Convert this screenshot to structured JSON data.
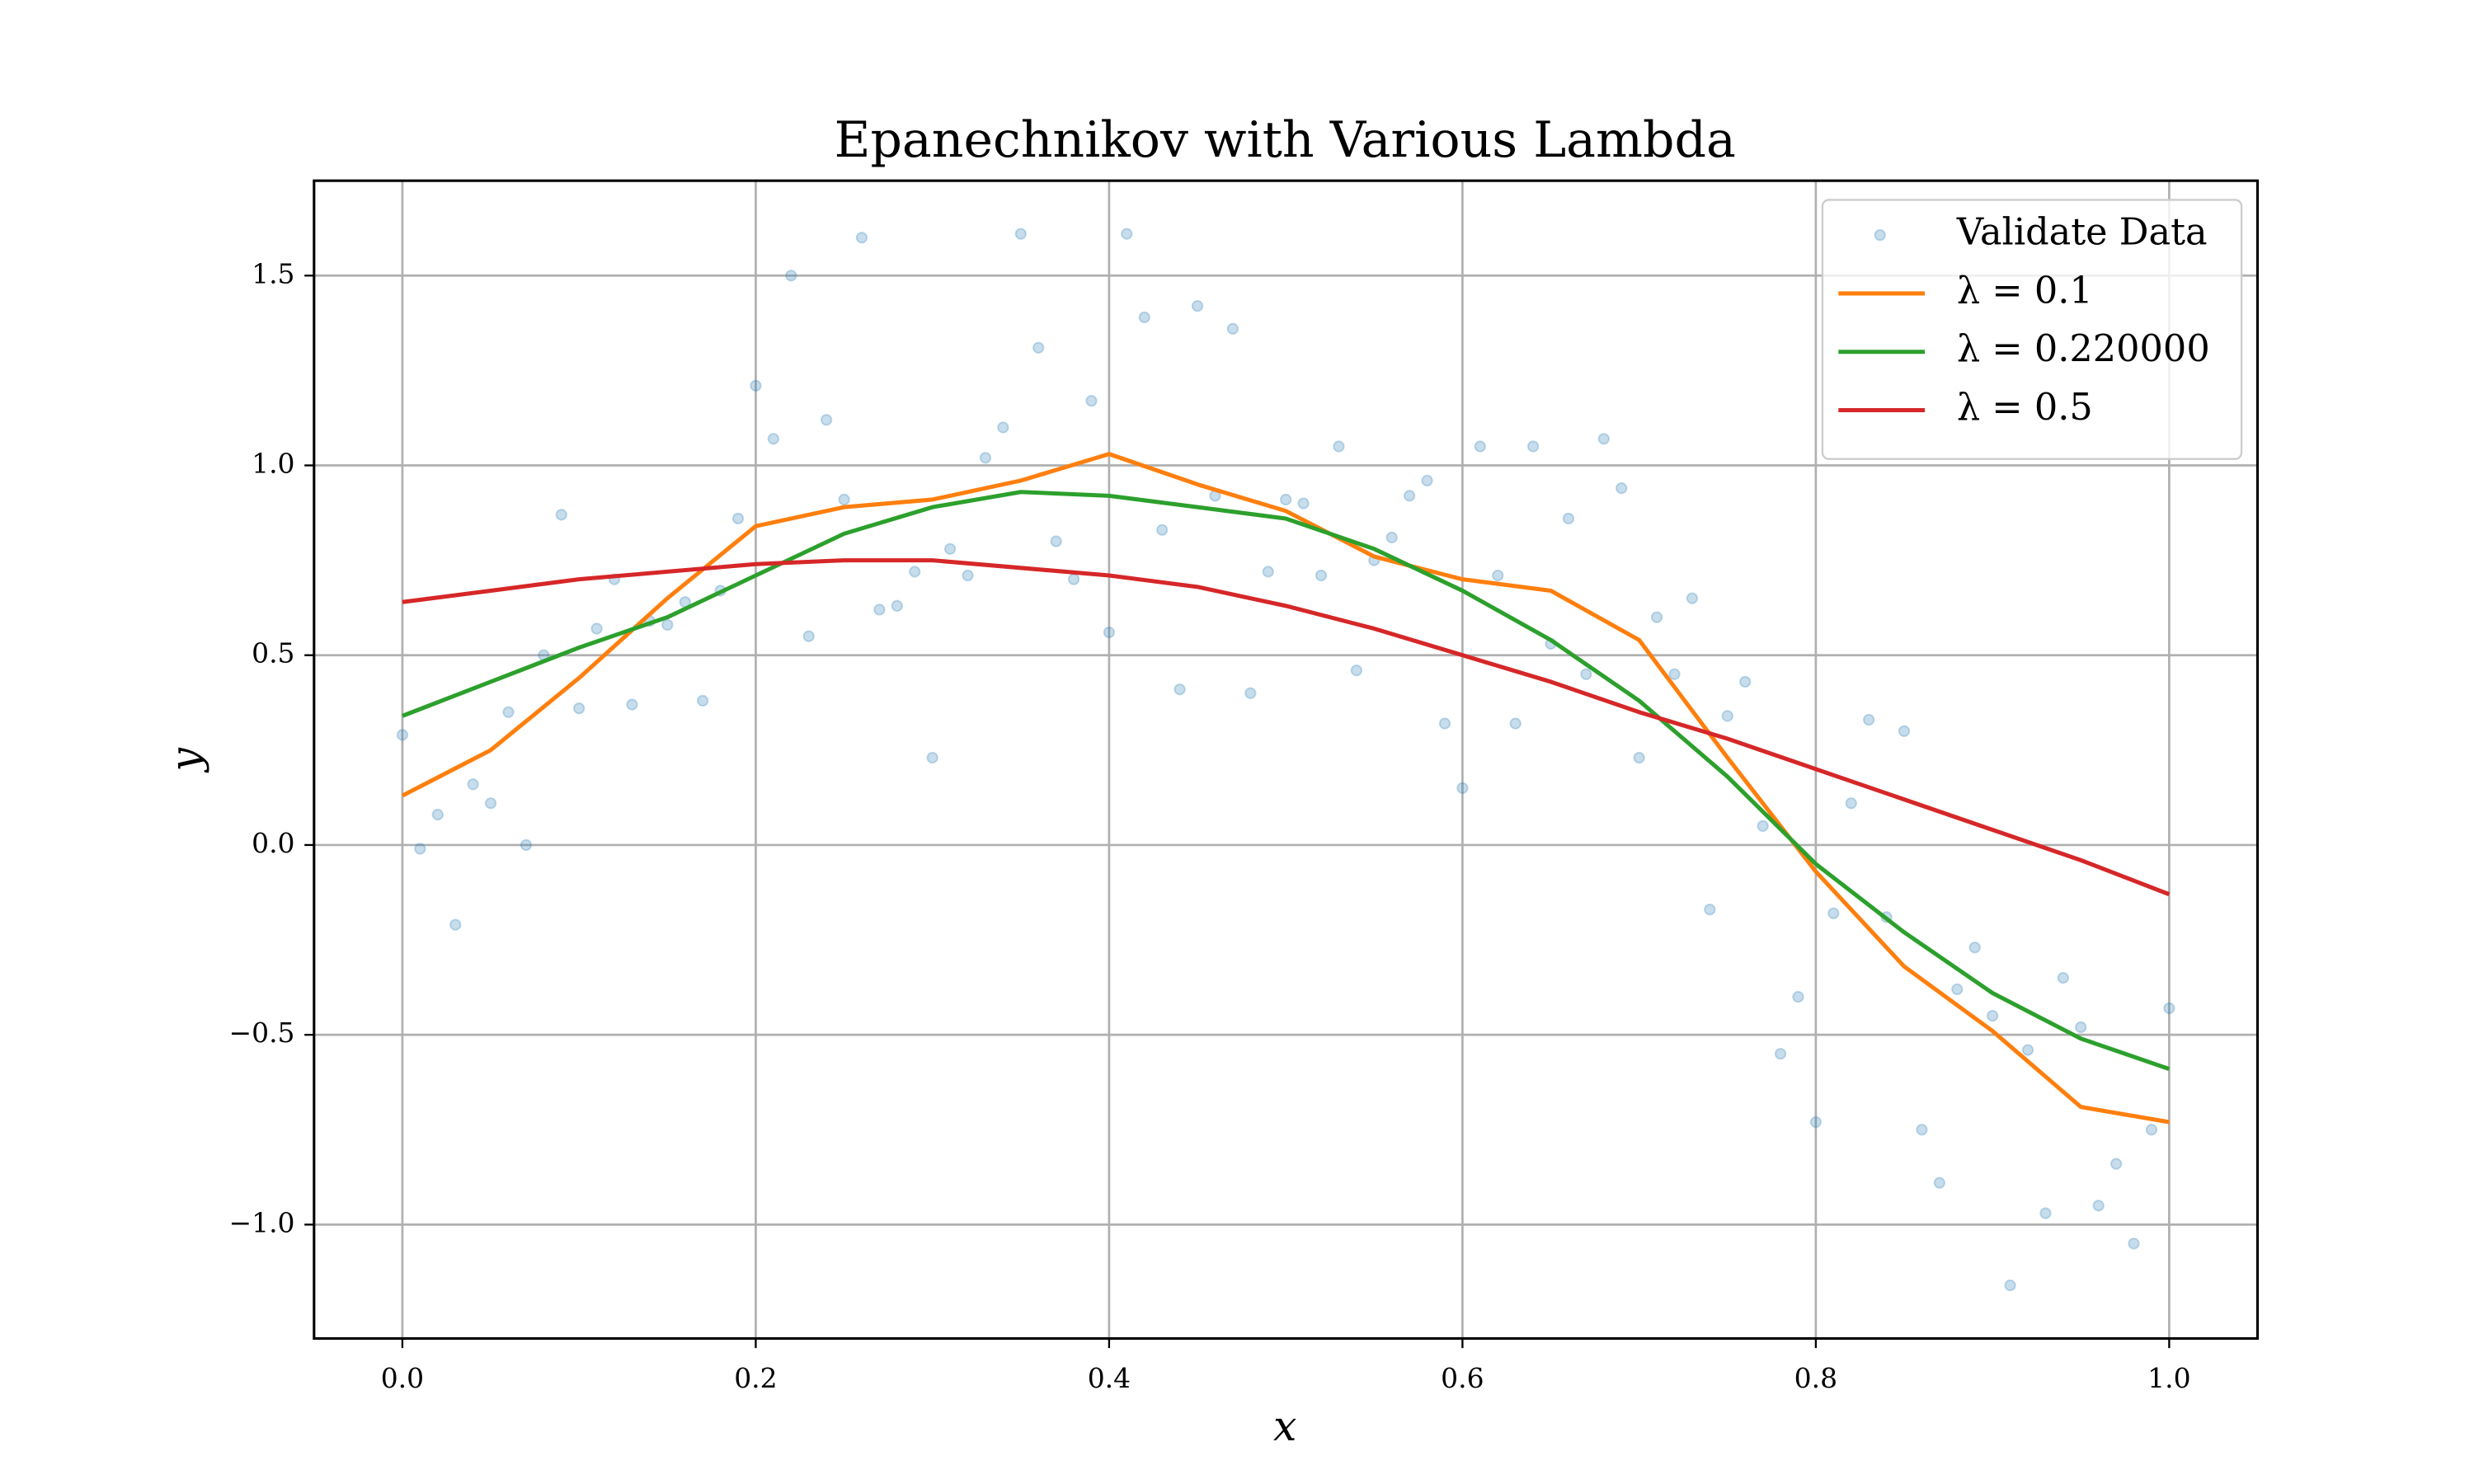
{
  "chart_data": {
    "type": "line",
    "title": "Epanechnikov with Various Lambda",
    "x_label": "x",
    "y_label": "y",
    "xlim": [
      -0.05,
      1.05
    ],
    "ylim": [
      -1.3,
      1.75
    ],
    "xticks": [
      {
        "value": 0,
        "label": "0.0"
      },
      0.2,
      0.4,
      0.6,
      0.8,
      {
        "value": 1,
        "label": "1.0"
      }
    ],
    "yticks": [
      {
        "value": -1,
        "label": "−1.0"
      },
      {
        "value": -0.5,
        "label": "−0.5"
      },
      {
        "value": 0,
        "label": "0.0"
      },
      0.5,
      {
        "value": 1,
        "label": "1.0"
      },
      1.5
    ],
    "grid": true,
    "legend": "upper right",
    "series": [
      {
        "name": "Validate Data",
        "type": "scatter",
        "color": "#1f77b4",
        "alpha": 0.25,
        "x": [
          0,
          0.01,
          0.02,
          0.03,
          0.04,
          0.05,
          0.06,
          0.07,
          0.08,
          0.09,
          0.1,
          0.11,
          0.12,
          0.13,
          0.14,
          0.15,
          0.16,
          0.17,
          0.18,
          0.19,
          0.2,
          0.21,
          0.22,
          0.23,
          0.24,
          0.25,
          0.26,
          0.27,
          0.28,
          0.29,
          0.3,
          0.31,
          0.32,
          0.33,
          0.34,
          0.35,
          0.36,
          0.37,
          0.38,
          0.39,
          0.4,
          0.41,
          0.42,
          0.43,
          0.44,
          0.45,
          0.46,
          0.47,
          0.48,
          0.49,
          0.5,
          0.51,
          0.52,
          0.53,
          0.54,
          0.55,
          0.56,
          0.57,
          0.58,
          0.59,
          0.6,
          0.61,
          0.62,
          0.63,
          0.64,
          0.65,
          0.66,
          0.67,
          0.68,
          0.69,
          0.7,
          0.71,
          0.72,
          0.73,
          0.74,
          0.75,
          0.76,
          0.77,
          0.78,
          0.79,
          0.8,
          0.81,
          0.82,
          0.83,
          0.84,
          0.85,
          0.86,
          0.87,
          0.88,
          0.89,
          0.9,
          0.91,
          0.92,
          0.93,
          0.94,
          0.95,
          0.96,
          0.97,
          0.98,
          0.99,
          1
        ],
        "values": [
          0.29,
          -0.01,
          0.08,
          -0.21,
          0.16,
          0.11,
          0.35,
          0.0,
          0.5,
          0.87,
          0.36,
          0.57,
          0.7,
          0.37,
          0.59,
          0.58,
          0.64,
          0.38,
          0.67,
          0.86,
          1.21,
          1.07,
          1.5,
          0.55,
          1.12,
          0.91,
          1.6,
          0.62,
          0.63,
          0.72,
          0.23,
          0.78,
          0.71,
          1.02,
          1.1,
          1.61,
          1.31,
          0.8,
          0.7,
          1.17,
          0.56,
          1.61,
          1.39,
          0.83,
          0.41,
          1.42,
          0.92,
          1.36,
          0.4,
          0.72,
          0.91,
          0.9,
          0.71,
          1.05,
          0.46,
          0.75,
          0.81,
          0.92,
          0.96,
          0.32,
          0.15,
          1.05,
          0.71,
          0.32,
          1.05,
          0.53,
          0.86,
          0.45,
          1.07,
          0.94,
          0.23,
          0.6,
          0.45,
          0.65,
          -0.17,
          0.34,
          0.43,
          0.05,
          -0.55,
          -0.4,
          -0.73,
          -0.18,
          0.11,
          0.33,
          -0.19,
          0.3,
          -0.75,
          -0.89,
          -0.38,
          -0.27,
          -0.45,
          -1.16,
          -0.54,
          -0.97,
          -0.35,
          -0.48,
          -0.95,
          -0.84,
          -1.05,
          -0.75,
          -0.43
        ]
      },
      {
        "name": "λ = 0.1",
        "color": "#ff7f0e",
        "x": [
          0,
          0.05,
          0.1,
          0.15,
          0.2,
          0.25,
          0.3,
          0.35,
          0.4,
          0.45,
          0.5,
          0.55,
          0.6,
          0.65,
          0.7,
          0.75,
          0.8,
          0.85,
          0.9,
          0.95,
          1
        ],
        "values": [
          0.13,
          0.25,
          0.44,
          0.65,
          0.84,
          0.89,
          0.91,
          0.96,
          1.03,
          0.95,
          0.88,
          0.76,
          0.7,
          0.67,
          0.54,
          0.23,
          -0.07,
          -0.32,
          -0.49,
          -0.69,
          -0.73
        ]
      },
      {
        "name": "λ = 0.220000",
        "color": "#2ca02c",
        "x": [
          0,
          0.05,
          0.1,
          0.15,
          0.2,
          0.25,
          0.3,
          0.35,
          0.4,
          0.45,
          0.5,
          0.55,
          0.6,
          0.65,
          0.7,
          0.75,
          0.8,
          0.85,
          0.9,
          0.95,
          1
        ],
        "values": [
          0.34,
          0.43,
          0.52,
          0.6,
          0.71,
          0.82,
          0.89,
          0.93,
          0.92,
          0.89,
          0.86,
          0.78,
          0.67,
          0.54,
          0.38,
          0.18,
          -0.05,
          -0.23,
          -0.39,
          -0.51,
          -0.59
        ]
      },
      {
        "name": "λ = 0.5",
        "color": "#d62728",
        "x": [
          0,
          0.05,
          0.1,
          0.15,
          0.2,
          0.25,
          0.3,
          0.35,
          0.4,
          0.45,
          0.5,
          0.55,
          0.6,
          0.65,
          0.7,
          0.75,
          0.8,
          0.85,
          0.9,
          0.95,
          1
        ],
        "values": [
          0.64,
          0.67,
          0.7,
          0.72,
          0.74,
          0.75,
          0.75,
          0.73,
          0.71,
          0.68,
          0.63,
          0.57,
          0.5,
          0.43,
          0.35,
          0.28,
          0.2,
          0.12,
          0.04,
          -0.04,
          -0.13
        ]
      }
    ]
  }
}
